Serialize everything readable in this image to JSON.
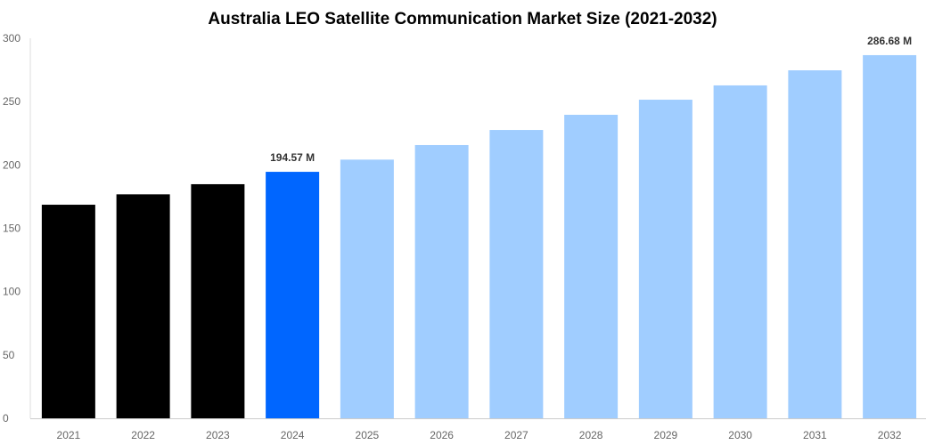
{
  "chart_data": {
    "type": "bar",
    "title": "Australia LEO Satellite Communication Market Size (2021-2032)",
    "xlabel": "",
    "ylabel": "",
    "ylim": [
      0,
      300
    ],
    "yticks": [
      0,
      50,
      100,
      150,
      200,
      250,
      300
    ],
    "grid": false,
    "categories": [
      "2021",
      "2022",
      "2023",
      "2024",
      "2025",
      "2026",
      "2027",
      "2028",
      "2029",
      "2030",
      "2031",
      "2032"
    ],
    "values": [
      168.6,
      176.8,
      184.8,
      194.57,
      204.2,
      215.7,
      227.6,
      239.6,
      251.5,
      262.8,
      274.7,
      286.68
    ],
    "data_labels": {
      "3": "194.57 M",
      "11": "286.68 M"
    },
    "colors": {
      "historical": "#000000",
      "base_year": "#0066FF",
      "forecast": "#A0CDFF"
    },
    "bar_color_groups": [
      "historical",
      "historical",
      "historical",
      "base_year",
      "forecast",
      "forecast",
      "forecast",
      "forecast",
      "forecast",
      "forecast",
      "forecast",
      "forecast"
    ]
  }
}
